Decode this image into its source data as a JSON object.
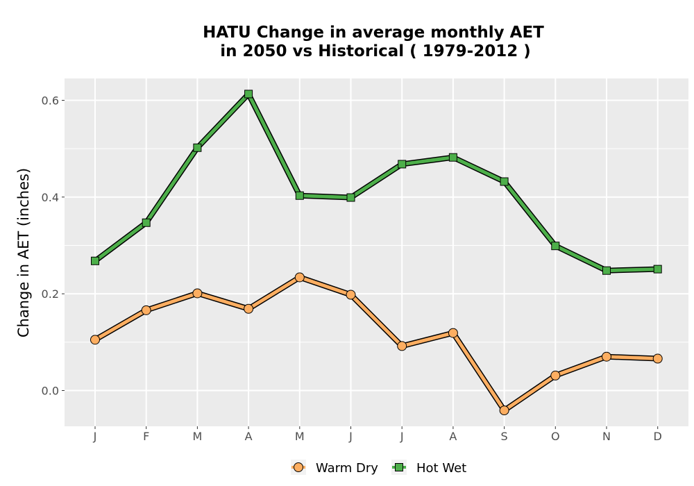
{
  "chart_data": {
    "type": "line",
    "title_line1": "HATU  Change in average monthly AET",
    "title_line2": "in 2050 vs Historical ( 1979-2012 )",
    "xlabel": "",
    "ylabel": "Change in AET (inches)",
    "categories": [
      "J",
      "F",
      "M",
      "A",
      "M",
      "J",
      "J",
      "A",
      "S",
      "O",
      "N",
      "D"
    ],
    "y_ticks": [
      "0.0",
      "0.2",
      "0.4",
      "0.6"
    ],
    "y_tick_values": [
      0.0,
      0.2,
      0.4,
      0.6
    ],
    "ylim": [
      -0.075,
      0.645
    ],
    "grid": true,
    "legend_position": "bottom",
    "series": [
      {
        "name": "Warm Dry",
        "marker": "circle",
        "color": "#FDAE61",
        "values": [
          0.105,
          0.166,
          0.201,
          0.169,
          0.234,
          0.198,
          0.092,
          0.119,
          -0.041,
          0.031,
          0.07,
          0.066
        ]
      },
      {
        "name": "Hot Wet",
        "marker": "square",
        "color": "#4DAF4A",
        "values": [
          0.268,
          0.347,
          0.502,
          0.613,
          0.403,
          0.399,
          0.468,
          0.482,
          0.432,
          0.299,
          0.248,
          0.251
        ]
      }
    ]
  },
  "colors": {
    "panel_background": "#EBEBEB",
    "grid": "#FFFFFF",
    "outline": "#000000"
  }
}
